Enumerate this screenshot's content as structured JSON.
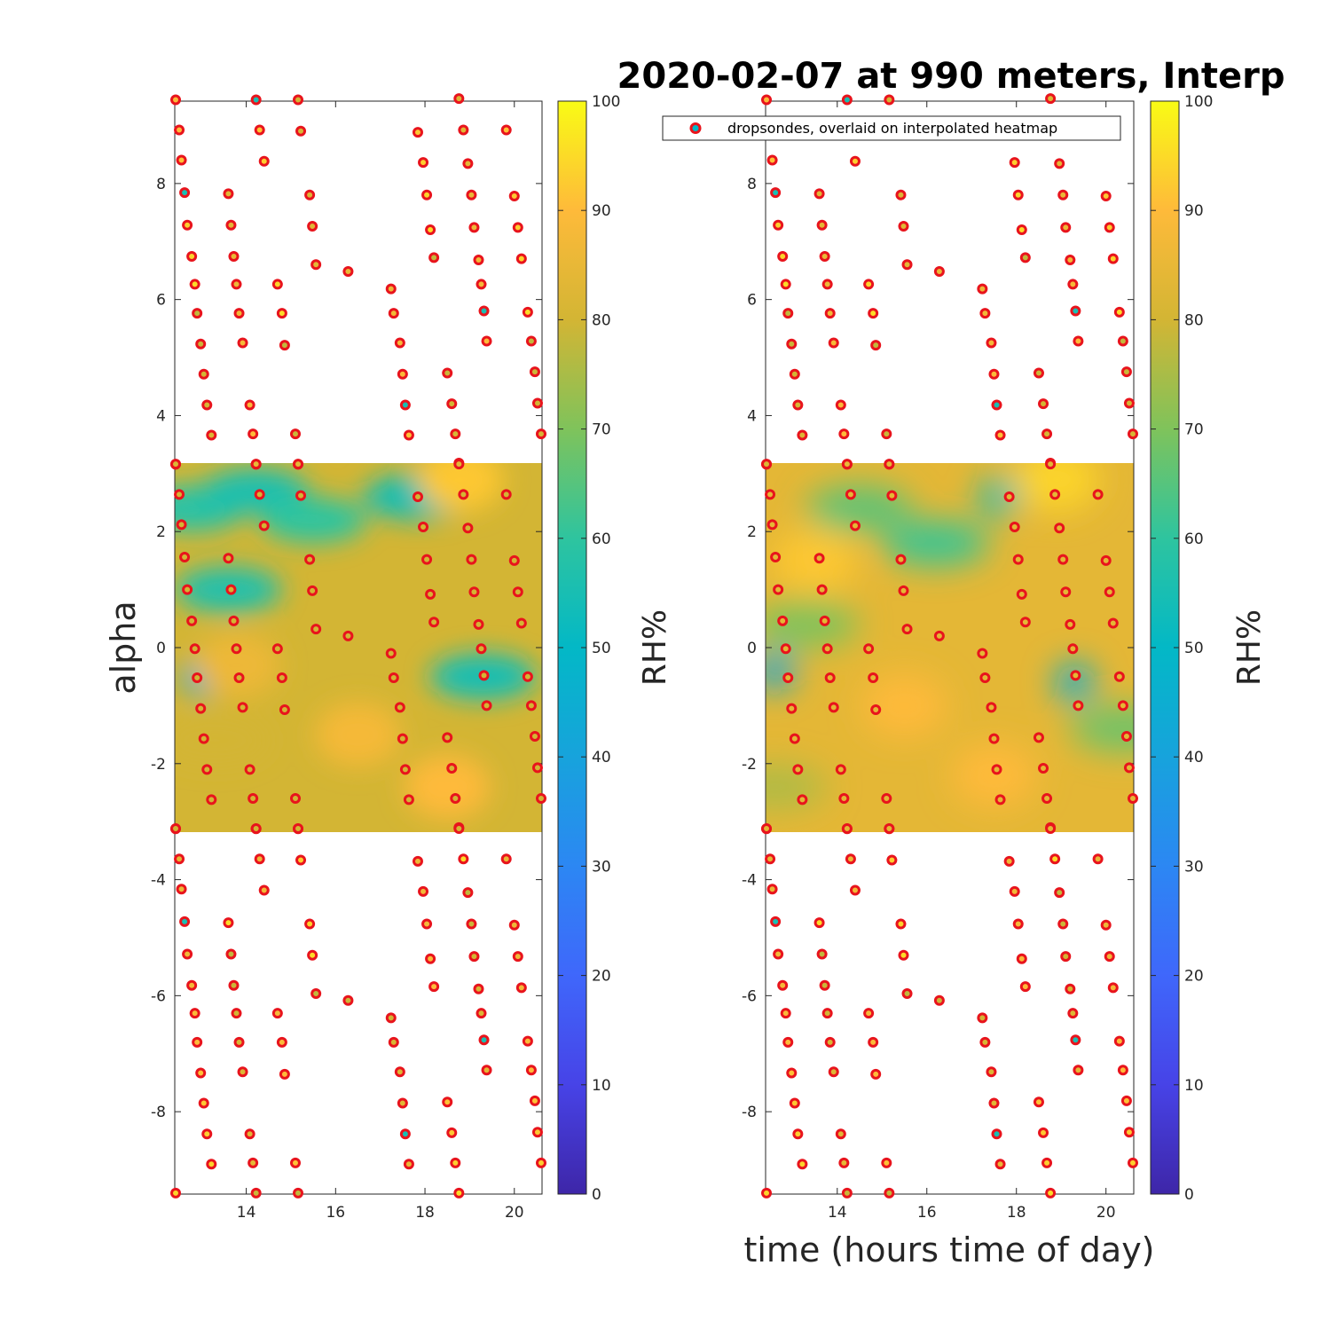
{
  "figure": {
    "title": "2020-02-07 at 990 meters, Interp"
  },
  "chart_data": [
    {
      "type": "heatmap",
      "panel": "left",
      "title": "",
      "xlabel": "",
      "ylabel": "alpha",
      "colorbar_label": "RH%",
      "xlim": [
        12.4,
        20.62
      ],
      "ylim": [
        -9.42,
        9.42
      ],
      "xticks": [
        "14",
        "16",
        "18",
        "20"
      ],
      "yticks": [
        "-8",
        "-6",
        "-4",
        "-2",
        "0",
        "2",
        "4",
        "6",
        "8"
      ],
      "colorbar_ticks": [
        "0",
        "10",
        "20",
        "30",
        "40",
        "50",
        "60",
        "70",
        "80",
        "90",
        "100"
      ],
      "colorbar_range": [
        0,
        100
      ],
      "heatmap_x_range": [
        12.4,
        20.62
      ],
      "heatmap_y_range": [
        -3.14,
        3.14
      ],
      "heatmap_base_rh": 80,
      "heatmap_features": [
        {
          "x": 12.8,
          "y": 2.4,
          "rh": 58,
          "kind": "band"
        },
        {
          "x": 14.2,
          "y": 2.7,
          "rh": 56,
          "kind": "band"
        },
        {
          "x": 13.6,
          "y": 1.0,
          "rh": 57,
          "kind": "band"
        },
        {
          "x": 15.5,
          "y": 2.2,
          "rh": 60,
          "kind": "band"
        },
        {
          "x": 17.8,
          "y": 2.6,
          "rh": 55,
          "kind": "band"
        },
        {
          "x": 13.0,
          "y": -0.5,
          "rh": 45,
          "kind": "spot"
        },
        {
          "x": 19.3,
          "y": -0.5,
          "rh": 55,
          "kind": "band"
        },
        {
          "x": 13.3,
          "y": -1.6,
          "rh": 80,
          "kind": "band"
        },
        {
          "x": 16.5,
          "y": -1.5,
          "rh": 88,
          "kind": "warm"
        },
        {
          "x": 18.5,
          "y": -2.4,
          "rh": 90,
          "kind": "warm"
        },
        {
          "x": 18.8,
          "y": 2.9,
          "rh": 92,
          "kind": "warm"
        },
        {
          "x": 13.8,
          "y": -0.3,
          "rh": 86,
          "kind": "warm"
        }
      ],
      "legend": null
    },
    {
      "type": "heatmap",
      "panel": "right",
      "title": "",
      "xlabel": "time (hours time of day)",
      "ylabel": "",
      "colorbar_label": "RH%",
      "xlim": [
        12.4,
        20.62
      ],
      "ylim": [
        -9.42,
        9.42
      ],
      "xticks": [
        "14",
        "16",
        "18",
        "20"
      ],
      "yticks": [
        "-8",
        "-6",
        "-4",
        "-2",
        "0",
        "2",
        "4",
        "6",
        "8"
      ],
      "colorbar_ticks": [
        "0",
        "10",
        "20",
        "30",
        "40",
        "50",
        "60",
        "70",
        "80",
        "90",
        "100"
      ],
      "colorbar_range": [
        0,
        100
      ],
      "heatmap_x_range": [
        12.4,
        20.62
      ],
      "heatmap_y_range": [
        -3.14,
        3.14
      ],
      "heatmap_base_rh": 84,
      "heatmap_features": [
        {
          "x": 16.2,
          "y": 1.8,
          "rh": 62,
          "kind": "band"
        },
        {
          "x": 17.6,
          "y": 2.6,
          "rh": 55,
          "kind": "spot"
        },
        {
          "x": 14.5,
          "y": 2.4,
          "rh": 66,
          "kind": "band"
        },
        {
          "x": 12.6,
          "y": -0.4,
          "rh": 42,
          "kind": "spot"
        },
        {
          "x": 13.3,
          "y": 0.4,
          "rh": 70,
          "kind": "band"
        },
        {
          "x": 19.3,
          "y": -0.6,
          "rh": 45,
          "kind": "spot"
        },
        {
          "x": 20.4,
          "y": -1.4,
          "rh": 68,
          "kind": "band"
        },
        {
          "x": 13.5,
          "y": 1.5,
          "rh": 92,
          "kind": "warm"
        },
        {
          "x": 18.9,
          "y": 2.9,
          "rh": 94,
          "kind": "warm"
        },
        {
          "x": 17.5,
          "y": -2.2,
          "rh": 90,
          "kind": "warm"
        },
        {
          "x": 15.5,
          "y": -1.0,
          "rh": 90,
          "kind": "warm"
        },
        {
          "x": 12.6,
          "y": -2.4,
          "rh": 76,
          "kind": "band"
        }
      ],
      "legend": {
        "label": "dropsondes, overlaid on interpolated heatmap",
        "placement": "top"
      }
    }
  ],
  "dropsondes": {
    "note_x": "hours time of day",
    "points": [
      [
        12.42,
        3.16
      ],
      [
        12.5,
        2.64
      ],
      [
        12.55,
        2.12
      ],
      [
        12.62,
        1.56
      ],
      [
        12.68,
        1.0
      ],
      [
        12.78,
        0.46
      ],
      [
        12.85,
        -0.02
      ],
      [
        12.9,
        -0.52
      ],
      [
        12.98,
        -1.05
      ],
      [
        13.05,
        -1.57
      ],
      [
        13.12,
        -2.1
      ],
      [
        13.22,
        -2.62
      ],
      [
        13.6,
        1.54
      ],
      [
        13.66,
        1.0
      ],
      [
        13.72,
        0.46
      ],
      [
        13.78,
        -0.02
      ],
      [
        13.84,
        -0.52
      ],
      [
        13.92,
        -1.03
      ],
      [
        14.08,
        -2.1
      ],
      [
        14.15,
        -2.6
      ],
      [
        14.22,
        3.16
      ],
      [
        14.3,
        2.64
      ],
      [
        14.4,
        2.1
      ],
      [
        14.7,
        -0.02
      ],
      [
        14.8,
        -0.52
      ],
      [
        14.86,
        -1.07
      ],
      [
        15.1,
        -2.6
      ],
      [
        15.16,
        3.16
      ],
      [
        15.22,
        2.62
      ],
      [
        15.42,
        1.52
      ],
      [
        15.48,
        0.98
      ],
      [
        15.56,
        0.32
      ],
      [
        16.28,
        0.2
      ],
      [
        17.24,
        -0.1
      ],
      [
        17.3,
        -0.52
      ],
      [
        17.44,
        -1.03
      ],
      [
        17.5,
        -1.57
      ],
      [
        17.56,
        -2.1
      ],
      [
        17.64,
        -2.62
      ],
      [
        17.84,
        2.6
      ],
      [
        17.96,
        2.08
      ],
      [
        18.04,
        1.52
      ],
      [
        18.12,
        0.92
      ],
      [
        18.2,
        0.44
      ],
      [
        18.5,
        -1.55
      ],
      [
        18.6,
        -2.08
      ],
      [
        18.68,
        -2.6
      ],
      [
        18.76,
        3.18
      ],
      [
        18.86,
        2.64
      ],
      [
        18.96,
        2.06
      ],
      [
        19.04,
        1.52
      ],
      [
        19.1,
        0.96
      ],
      [
        19.2,
        0.4
      ],
      [
        19.26,
        -0.02
      ],
      [
        19.32,
        -0.48
      ],
      [
        19.38,
        -1.0
      ],
      [
        19.82,
        2.64
      ],
      [
        20.0,
        1.5
      ],
      [
        20.08,
        0.96
      ],
      [
        20.16,
        0.42
      ],
      [
        20.3,
        -0.5
      ],
      [
        20.38,
        -1.0
      ],
      [
        20.46,
        -1.53
      ],
      [
        20.52,
        -2.07
      ],
      [
        20.6,
        -2.6
      ],
      [
        12.42,
        -3.12
      ],
      [
        18.76,
        -3.12
      ],
      [
        15.16,
        -3.12
      ],
      [
        14.22,
        -3.12
      ]
    ]
  }
}
